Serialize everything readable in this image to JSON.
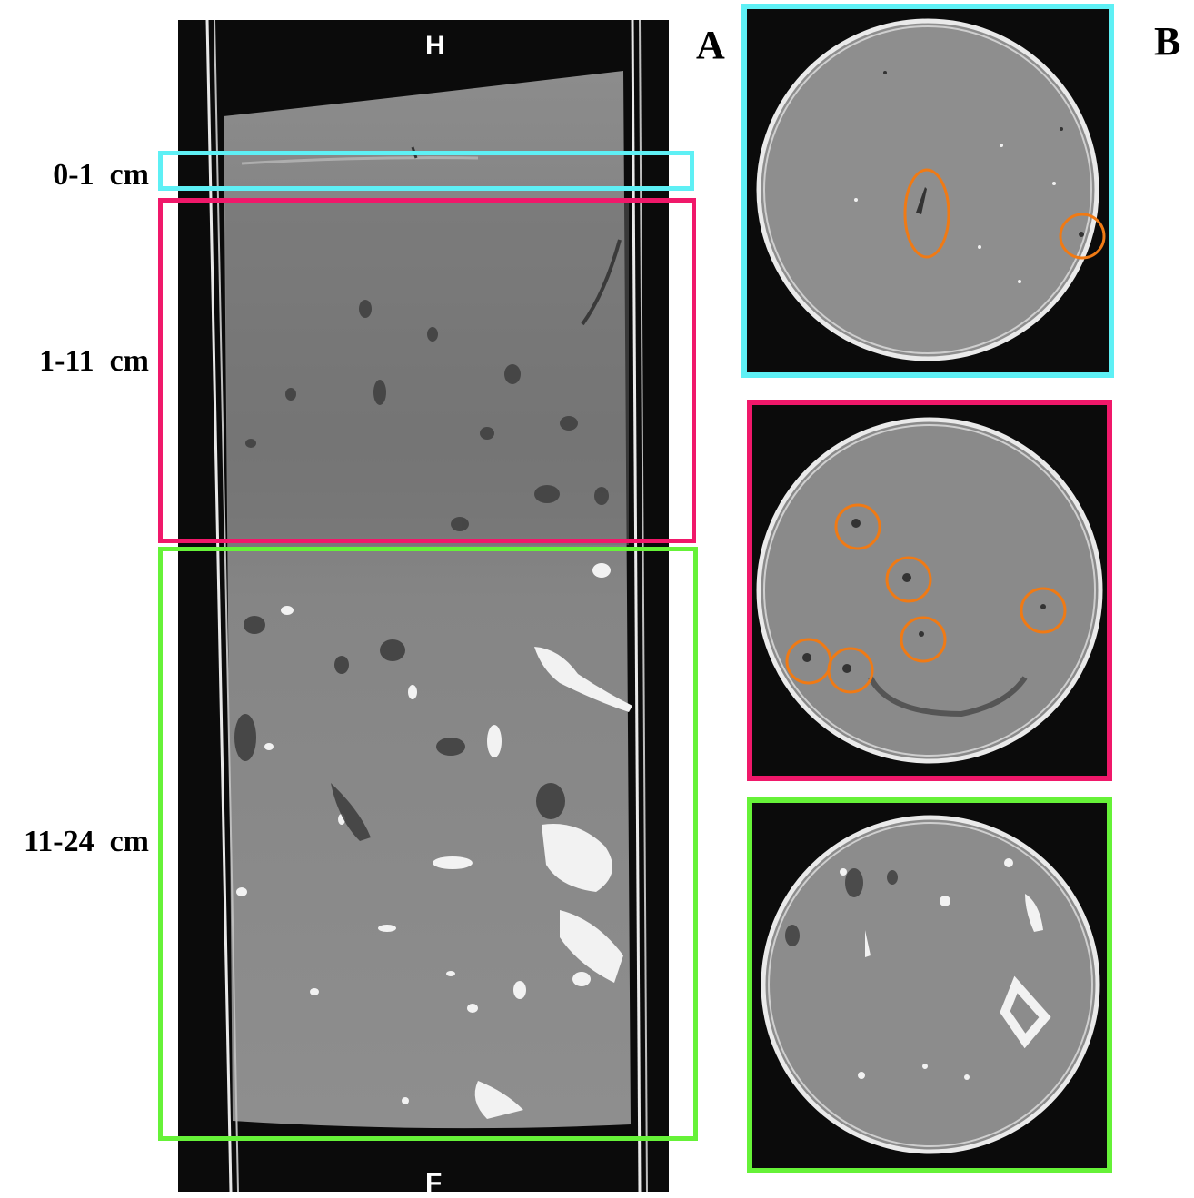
{
  "panel_labels": {
    "a": "A",
    "b": "B"
  },
  "core": {
    "top_marker": "H",
    "bottom_marker": "F"
  },
  "depth_intervals": [
    {
      "label": "0-1  cm",
      "color": "#5ef0f5"
    },
    {
      "label": "1-11  cm",
      "color": "#f0186a"
    },
    {
      "label": "11-24  cm",
      "color": "#66f238"
    }
  ],
  "highlight_color": "#f07a14",
  "background_color": "#0b0b0b"
}
